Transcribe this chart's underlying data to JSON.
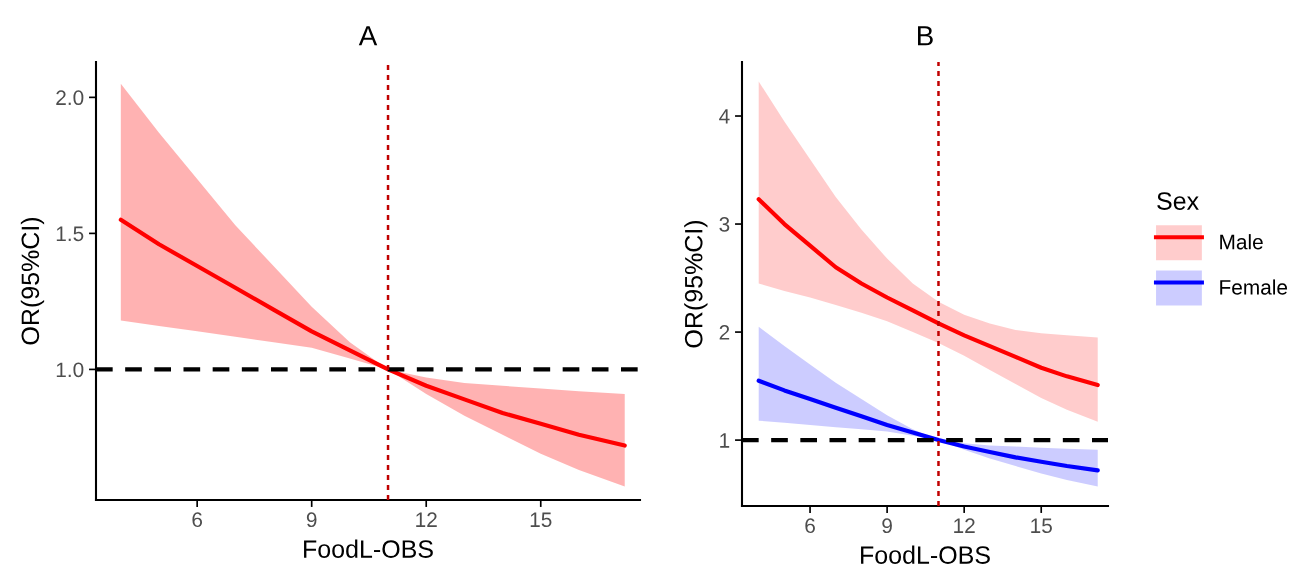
{
  "chart_data": [
    {
      "type": "line",
      "title": "A",
      "xlabel": "FoodL-OBS",
      "ylabel": "OR(95%CI)",
      "grid": false,
      "legend": false,
      "xlim": [
        3.35,
        17.6
      ],
      "xticks": [
        6,
        9,
        12,
        15
      ],
      "ylim": [
        0.52,
        2.13
      ],
      "yticks": [
        {
          "value": 1.0,
          "label": "1.0"
        },
        {
          "value": 1.5,
          "label": "1.5"
        },
        {
          "value": 2.0,
          "label": "2.0"
        }
      ],
      "x": [
        4,
        5,
        6,
        7,
        8,
        9,
        10,
        11,
        12,
        13,
        14,
        15,
        16,
        17.2
      ],
      "series": [
        {
          "color": "#ff0000",
          "values": [
            1.55,
            1.46,
            1.38,
            1.3,
            1.22,
            1.14,
            1.07,
            1.0,
            0.94,
            0.89,
            0.84,
            0.8,
            0.76,
            0.72
          ],
          "upper": [
            2.05,
            1.87,
            1.7,
            1.53,
            1.38,
            1.23,
            1.1,
            1.0,
            0.97,
            0.95,
            0.94,
            0.93,
            0.92,
            0.91
          ],
          "lower": [
            1.18,
            1.16,
            1.14,
            1.12,
            1.1,
            1.08,
            1.04,
            1.0,
            0.91,
            0.83,
            0.76,
            0.69,
            0.63,
            0.57
          ]
        }
      ],
      "ref_lines": [
        {
          "axis": "y",
          "value": 1,
          "color": "#000000",
          "line_style": "dashed"
        },
        {
          "axis": "x",
          "value": 11,
          "color": "#c00000",
          "line_style": "dotted"
        }
      ]
    },
    {
      "type": "line",
      "title": "B",
      "xlabel": "FoodL-OBS",
      "ylabel": "OR(95%CI)",
      "grid": false,
      "legend": "right",
      "legend_title": "Sex",
      "xlim": [
        3.35,
        17.6
      ],
      "xticks": [
        6,
        9,
        12,
        15
      ],
      "ylim": [
        0.39,
        4.5
      ],
      "yticks": [
        1,
        2,
        3,
        4
      ],
      "x": [
        4,
        5,
        6,
        7,
        8,
        9,
        10,
        11,
        12,
        13,
        14,
        15,
        16,
        17.2
      ],
      "series": [
        {
          "name": "Male",
          "color": "#ff0000",
          "values": [
            3.23,
            3.0,
            2.8,
            2.6,
            2.45,
            2.32,
            2.2,
            2.08,
            1.97,
            1.87,
            1.77,
            1.67,
            1.59,
            1.51
          ],
          "upper": [
            4.32,
            3.95,
            3.6,
            3.25,
            2.95,
            2.68,
            2.45,
            2.28,
            2.16,
            2.08,
            2.02,
            1.99,
            1.97,
            1.95
          ],
          "lower": [
            2.45,
            2.38,
            2.32,
            2.25,
            2.18,
            2.1,
            2.0,
            1.9,
            1.78,
            1.65,
            1.52,
            1.39,
            1.28,
            1.17
          ]
        },
        {
          "name": "Female",
          "color": "#0000ff",
          "values": [
            1.55,
            1.46,
            1.38,
            1.3,
            1.22,
            1.14,
            1.07,
            1.0,
            0.94,
            0.89,
            0.84,
            0.8,
            0.76,
            0.72
          ],
          "upper": [
            2.05,
            1.87,
            1.7,
            1.53,
            1.38,
            1.23,
            1.1,
            1.0,
            0.97,
            0.95,
            0.94,
            0.93,
            0.92,
            0.91
          ],
          "lower": [
            1.18,
            1.16,
            1.14,
            1.12,
            1.1,
            1.08,
            1.04,
            1.0,
            0.91,
            0.83,
            0.76,
            0.69,
            0.63,
            0.57
          ]
        }
      ],
      "ref_lines": [
        {
          "axis": "y",
          "value": 1,
          "color": "#000000",
          "line_style": "dashed"
        },
        {
          "axis": "x",
          "value": 11,
          "color": "#c00000",
          "line_style": "dotted"
        }
      ]
    }
  ]
}
